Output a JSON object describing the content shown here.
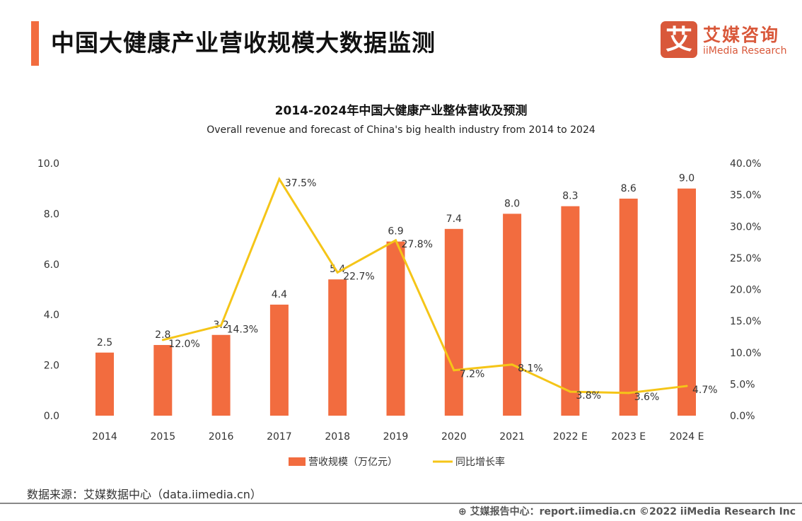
{
  "header": {
    "title": "中国大健康产业营收规模大数据监测"
  },
  "logo": {
    "glyph": "艾",
    "cn": "艾媒咨询",
    "en": "iiMedia Research"
  },
  "colors": {
    "accent": "#f26c3f",
    "bar": "#f26c3f",
    "line": "#f5c518"
  },
  "chart_data": {
    "type": "bar+line",
    "title": "2014-2024年中国大健康产业整体营收及预测",
    "subtitle": "Overall revenue and forecast of China's big health industry from 2014 to 2024",
    "categories": [
      "2014",
      "2015",
      "2016",
      "2017",
      "2018",
      "2019",
      "2020",
      "2021",
      "2022 E",
      "2023 E",
      "2024 E"
    ],
    "series": [
      {
        "name": "营收规模（万亿元）",
        "type": "bar",
        "axis": "left",
        "values": [
          2.5,
          2.8,
          3.2,
          4.4,
          5.4,
          6.9,
          7.4,
          8.0,
          8.3,
          8.6,
          9.0
        ],
        "labels": [
          "2.5",
          "2.8",
          "3.2",
          "4.4",
          "5.4",
          "6.9",
          "7.4",
          "8.0",
          "8.3",
          "8.6",
          "9.0"
        ]
      },
      {
        "name": "同比增长率",
        "type": "line",
        "axis": "right",
        "values": [
          null,
          12.0,
          14.3,
          37.5,
          22.7,
          27.8,
          7.2,
          8.1,
          3.8,
          3.6,
          4.7
        ],
        "labels": [
          "",
          "12.0%",
          "14.3%",
          "37.5%",
          "22.7%",
          "27.8%",
          "7.2%",
          "8.1%",
          "3.8%",
          "3.6%",
          "4.7%"
        ]
      }
    ],
    "y_left": {
      "range": [
        0,
        10
      ],
      "ticks": [
        "0.0",
        "2.0",
        "4.0",
        "6.0",
        "8.0",
        "10.0"
      ]
    },
    "y_right": {
      "range": [
        0,
        40
      ],
      "ticks": [
        "0.0%",
        "5.0%",
        "10.0%",
        "15.0%",
        "20.0%",
        "25.0%",
        "30.0%",
        "35.0%",
        "40.0%"
      ]
    },
    "grid": false,
    "legend": "bottom"
  },
  "source": "数据来源：艾媒数据中心（data.iimedia.cn）",
  "footer": "艾媒报告中心：report.iimedia.cn   ©2022  iiMedia Research  Inc"
}
